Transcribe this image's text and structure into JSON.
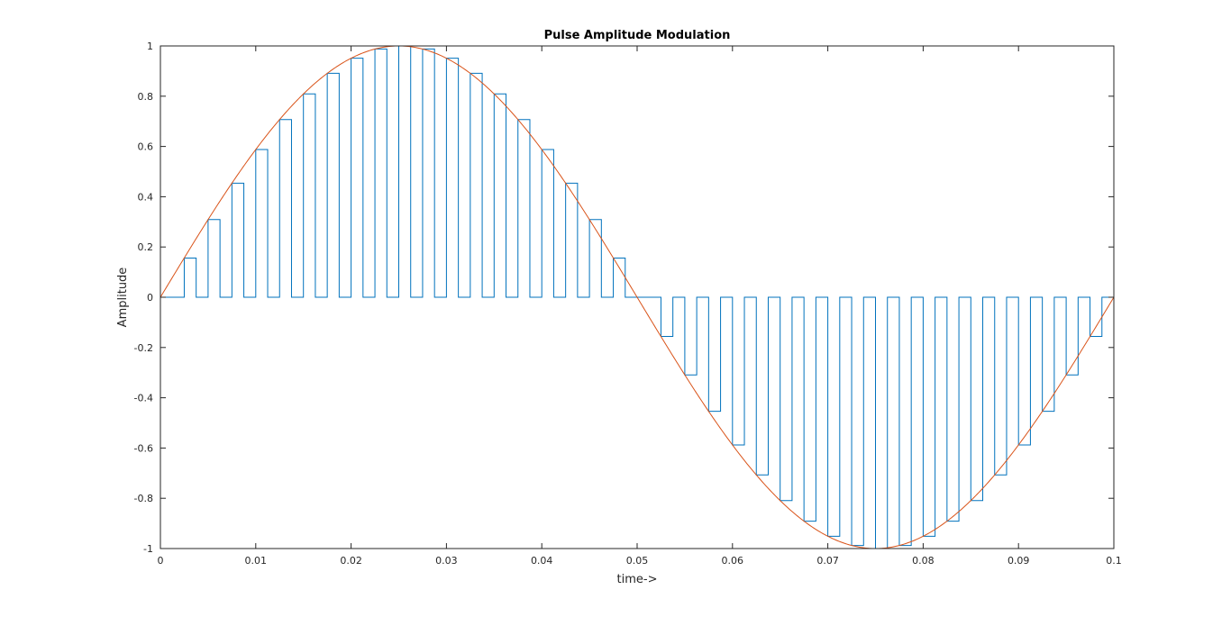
{
  "chart_data": {
    "type": "line",
    "title": "Pulse Amplitude Modulation",
    "xlabel": "time->",
    "ylabel": "Amplitude",
    "xlim": [
      0,
      0.1
    ],
    "ylim": [
      -1,
      1
    ],
    "xticks": [
      "0",
      "0.01",
      "0.02",
      "0.03",
      "0.04",
      "0.05",
      "0.06",
      "0.07",
      "0.08",
      "0.09",
      "0.1"
    ],
    "yticks": [
      "-1",
      "-0.8",
      "-0.6",
      "-0.4",
      "-0.2",
      "0",
      "0.2",
      "0.4",
      "0.6",
      "0.8",
      "1"
    ],
    "grid": false,
    "box": true,
    "series": [
      {
        "color": "#0072BD",
        "kind": "pam-pulses",
        "pulse_period": 0.0025,
        "pulse_width": 0.00125,
        "pulse_starts": [
          0.0025,
          0.005,
          0.0075,
          0.01,
          0.0125,
          0.015,
          0.0175,
          0.02,
          0.0225,
          0.025,
          0.0275,
          0.03,
          0.0325,
          0.035,
          0.0375,
          0.04,
          0.0425,
          0.045,
          0.0475,
          0.05,
          0.0525,
          0.055,
          0.0575,
          0.06,
          0.0625,
          0.065,
          0.0675,
          0.07,
          0.0725,
          0.075,
          0.0775,
          0.08,
          0.0825,
          0.085,
          0.0875,
          0.09,
          0.0925,
          0.095,
          0.0975
        ],
        "pulse_values": [
          0.156,
          0.309,
          0.454,
          0.588,
          0.707,
          0.809,
          0.891,
          0.951,
          0.988,
          1.0,
          0.988,
          0.951,
          0.891,
          0.809,
          0.707,
          0.588,
          0.454,
          0.309,
          0.156,
          0.0,
          -0.156,
          -0.309,
          -0.454,
          -0.588,
          -0.707,
          -0.809,
          -0.891,
          -0.951,
          -0.988,
          -1.0,
          -0.988,
          -0.951,
          -0.891,
          -0.809,
          -0.707,
          -0.588,
          -0.454,
          -0.309,
          -0.156
        ]
      },
      {
        "color": "#D95319",
        "kind": "message-sine",
        "frequency_hz": 10,
        "amplitude": 1
      }
    ]
  }
}
